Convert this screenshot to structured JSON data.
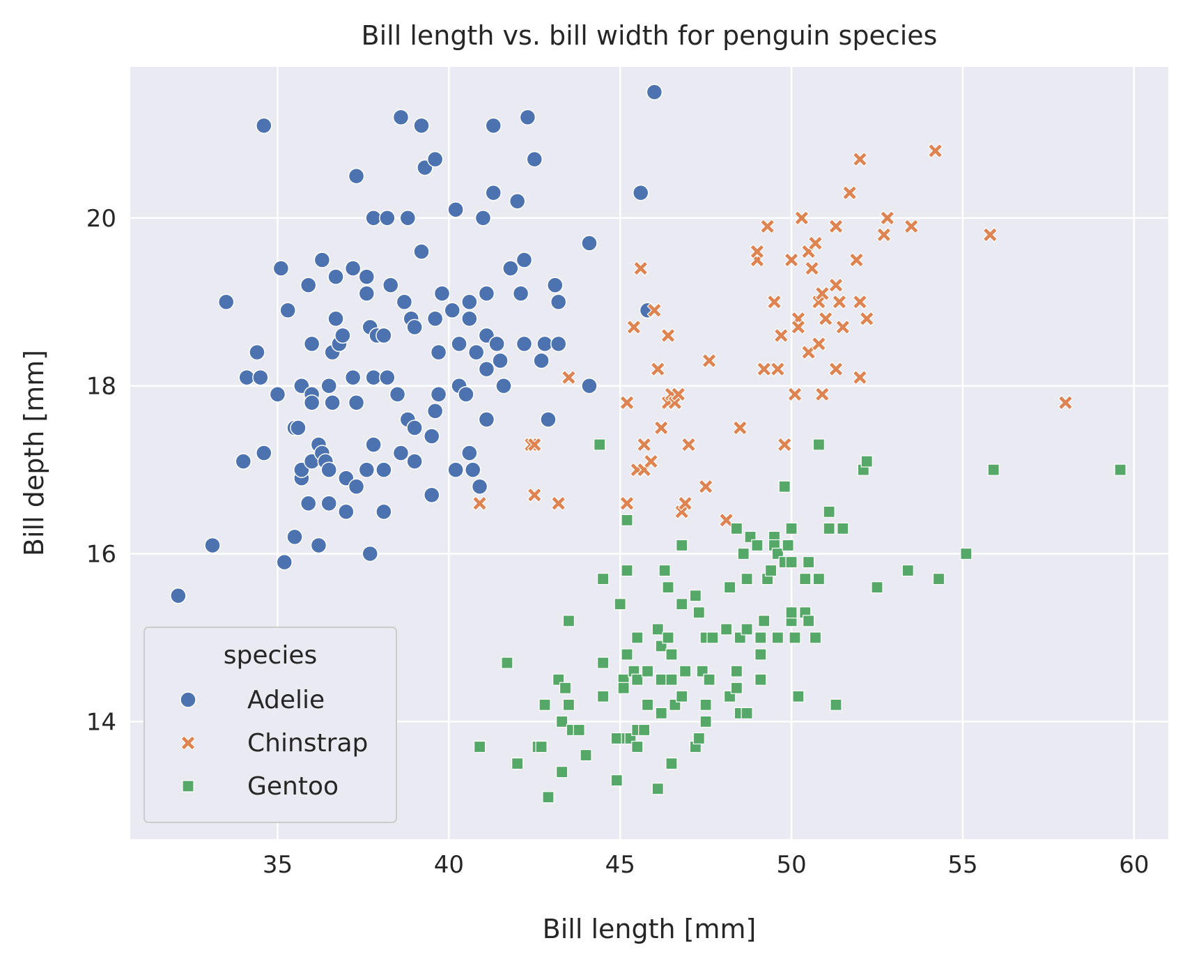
{
  "chart_data": {
    "type": "scatter",
    "title": "Bill length vs. bill width for penguin species",
    "xlabel": "Bill length [mm]",
    "ylabel": "Bill depth [mm]",
    "xlim": [
      30.7,
      61.0
    ],
    "ylim": [
      12.6,
      21.8
    ],
    "xticks": [
      35,
      40,
      45,
      50,
      55,
      60
    ],
    "yticks": [
      14,
      16,
      18,
      20
    ],
    "grid": true,
    "background": "#eaeaf2",
    "legend": {
      "title": "species",
      "placement": "lower-left"
    },
    "series": [
      {
        "name": "Adelie",
        "marker": "circle",
        "color": "#4c72b0",
        "points": [
          [
            32.1,
            15.5
          ],
          [
            33.1,
            16.1
          ],
          [
            33.5,
            19.0
          ],
          [
            34.0,
            17.1
          ],
          [
            34.1,
            18.1
          ],
          [
            34.4,
            18.4
          ],
          [
            34.5,
            18.1
          ],
          [
            34.6,
            21.1
          ],
          [
            34.6,
            17.2
          ],
          [
            35.0,
            17.9
          ],
          [
            35.1,
            19.4
          ],
          [
            35.2,
            15.9
          ],
          [
            35.3,
            18.9
          ],
          [
            35.5,
            16.2
          ],
          [
            35.5,
            17.5
          ],
          [
            35.6,
            17.5
          ],
          [
            35.7,
            16.9
          ],
          [
            35.7,
            17.0
          ],
          [
            35.7,
            18.0
          ],
          [
            35.9,
            19.2
          ],
          [
            35.9,
            16.6
          ],
          [
            36.0,
            17.9
          ],
          [
            36.0,
            18.5
          ],
          [
            36.0,
            17.8
          ],
          [
            36.0,
            17.1
          ],
          [
            36.2,
            16.1
          ],
          [
            36.2,
            17.3
          ],
          [
            36.3,
            19.5
          ],
          [
            36.3,
            17.2
          ],
          [
            36.4,
            17.1
          ],
          [
            36.5,
            18.0
          ],
          [
            36.5,
            16.6
          ],
          [
            36.5,
            17.0
          ],
          [
            36.6,
            17.8
          ],
          [
            36.6,
            18.4
          ],
          [
            36.7,
            18.8
          ],
          [
            36.7,
            19.3
          ],
          [
            36.8,
            18.5
          ],
          [
            36.9,
            18.6
          ],
          [
            37.0,
            16.9
          ],
          [
            37.0,
            16.5
          ],
          [
            37.2,
            18.1
          ],
          [
            37.2,
            19.4
          ],
          [
            37.3,
            20.5
          ],
          [
            37.3,
            17.8
          ],
          [
            37.3,
            16.8
          ],
          [
            37.6,
            19.1
          ],
          [
            37.6,
            17.0
          ],
          [
            37.6,
            19.3
          ],
          [
            37.7,
            16.0
          ],
          [
            37.7,
            18.7
          ],
          [
            37.8,
            20.0
          ],
          [
            37.8,
            18.1
          ],
          [
            37.8,
            17.3
          ],
          [
            37.9,
            18.6
          ],
          [
            38.1,
            17.0
          ],
          [
            38.1,
            18.6
          ],
          [
            38.1,
            16.5
          ],
          [
            38.2,
            20.0
          ],
          [
            38.2,
            18.1
          ],
          [
            38.3,
            19.2
          ],
          [
            38.5,
            17.9
          ],
          [
            38.6,
            21.2
          ],
          [
            38.6,
            17.2
          ],
          [
            38.7,
            19.0
          ],
          [
            38.8,
            17.6
          ],
          [
            38.8,
            20.0
          ],
          [
            38.9,
            18.8
          ],
          [
            39.0,
            17.5
          ],
          [
            39.0,
            18.7
          ],
          [
            39.0,
            17.1
          ],
          [
            39.2,
            19.6
          ],
          [
            39.2,
            21.1
          ],
          [
            39.3,
            20.6
          ],
          [
            39.5,
            17.4
          ],
          [
            39.5,
            16.7
          ],
          [
            39.6,
            17.7
          ],
          [
            39.6,
            20.7
          ],
          [
            39.6,
            18.8
          ],
          [
            39.7,
            18.4
          ],
          [
            39.7,
            17.9
          ],
          [
            39.8,
            19.1
          ],
          [
            40.1,
            18.9
          ],
          [
            40.2,
            17.0
          ],
          [
            40.2,
            20.1
          ],
          [
            40.3,
            18.5
          ],
          [
            40.3,
            18.0
          ],
          [
            40.5,
            17.9
          ],
          [
            40.6,
            17.2
          ],
          [
            40.6,
            18.8
          ],
          [
            40.6,
            19.0
          ],
          [
            40.7,
            17.0
          ],
          [
            40.8,
            18.4
          ],
          [
            40.9,
            16.8
          ],
          [
            41.0,
            20.0
          ],
          [
            41.1,
            18.2
          ],
          [
            41.1,
            19.1
          ],
          [
            41.1,
            17.6
          ],
          [
            41.1,
            18.6
          ],
          [
            41.3,
            21.1
          ],
          [
            41.3,
            20.3
          ],
          [
            41.4,
            18.5
          ],
          [
            41.5,
            18.3
          ],
          [
            41.6,
            18.0
          ],
          [
            41.8,
            19.4
          ],
          [
            42.0,
            20.2
          ],
          [
            42.1,
            19.1
          ],
          [
            42.2,
            18.5
          ],
          [
            42.2,
            19.5
          ],
          [
            42.3,
            21.2
          ],
          [
            42.5,
            20.7
          ],
          [
            42.7,
            18.3
          ],
          [
            42.8,
            18.5
          ],
          [
            42.9,
            17.6
          ],
          [
            43.1,
            19.2
          ],
          [
            43.2,
            19.0
          ],
          [
            43.2,
            18.5
          ],
          [
            44.1,
            19.7
          ],
          [
            44.1,
            18.0
          ],
          [
            45.6,
            20.3
          ],
          [
            45.8,
            18.9
          ],
          [
            46.0,
            21.5
          ]
        ]
      },
      {
        "name": "Chinstrap",
        "marker": "x",
        "color": "#dd8452",
        "points": [
          [
            40.9,
            16.6
          ],
          [
            42.4,
            17.3
          ],
          [
            42.5,
            16.7
          ],
          [
            42.5,
            17.3
          ],
          [
            43.2,
            16.6
          ],
          [
            43.5,
            18.1
          ],
          [
            45.2,
            17.8
          ],
          [
            45.2,
            16.6
          ],
          [
            45.4,
            18.7
          ],
          [
            45.5,
            17.0
          ],
          [
            45.6,
            19.4
          ],
          [
            45.7,
            17.3
          ],
          [
            45.7,
            17.0
          ],
          [
            45.9,
            17.1
          ],
          [
            46.0,
            18.9
          ],
          [
            46.1,
            18.2
          ],
          [
            46.2,
            17.5
          ],
          [
            46.4,
            17.8
          ],
          [
            46.4,
            18.6
          ],
          [
            46.5,
            17.9
          ],
          [
            46.6,
            17.8
          ],
          [
            46.7,
            17.9
          ],
          [
            46.8,
            16.5
          ],
          [
            46.9,
            16.6
          ],
          [
            47.0,
            17.3
          ],
          [
            47.5,
            16.8
          ],
          [
            47.6,
            18.3
          ],
          [
            48.1,
            16.4
          ],
          [
            48.5,
            17.5
          ],
          [
            49.0,
            19.5
          ],
          [
            49.0,
            19.6
          ],
          [
            49.2,
            18.2
          ],
          [
            49.3,
            19.9
          ],
          [
            49.5,
            19.0
          ],
          [
            49.6,
            18.2
          ],
          [
            49.7,
            18.6
          ],
          [
            49.8,
            17.3
          ],
          [
            50.0,
            19.5
          ],
          [
            50.1,
            17.9
          ],
          [
            50.2,
            18.8
          ],
          [
            50.2,
            18.7
          ],
          [
            50.3,
            20.0
          ],
          [
            50.5,
            19.6
          ],
          [
            50.5,
            18.4
          ],
          [
            50.6,
            19.4
          ],
          [
            50.7,
            19.7
          ],
          [
            50.8,
            18.5
          ],
          [
            50.8,
            19.0
          ],
          [
            50.9,
            19.1
          ],
          [
            50.9,
            17.9
          ],
          [
            51.0,
            18.8
          ],
          [
            51.3,
            19.9
          ],
          [
            51.3,
            18.2
          ],
          [
            51.3,
            19.2
          ],
          [
            51.4,
            19.0
          ],
          [
            51.5,
            18.7
          ],
          [
            51.7,
            20.3
          ],
          [
            51.9,
            19.5
          ],
          [
            52.0,
            18.1
          ],
          [
            52.0,
            19.0
          ],
          [
            52.0,
            20.7
          ],
          [
            52.2,
            18.8
          ],
          [
            52.7,
            19.8
          ],
          [
            52.8,
            20.0
          ],
          [
            53.5,
            19.9
          ],
          [
            54.2,
            20.8
          ],
          [
            55.8,
            19.8
          ],
          [
            58.0,
            17.8
          ]
        ]
      },
      {
        "name": "Gentoo",
        "marker": "square",
        "color": "#55a868",
        "points": [
          [
            40.9,
            13.7
          ],
          [
            41.7,
            14.7
          ],
          [
            42.0,
            13.5
          ],
          [
            42.6,
            13.7
          ],
          [
            42.7,
            13.7
          ],
          [
            42.8,
            14.2
          ],
          [
            42.9,
            13.1
          ],
          [
            43.2,
            14.5
          ],
          [
            43.3,
            14.0
          ],
          [
            43.3,
            13.4
          ],
          [
            43.4,
            14.4
          ],
          [
            43.5,
            15.2
          ],
          [
            43.5,
            14.2
          ],
          [
            43.6,
            13.9
          ],
          [
            43.8,
            13.9
          ],
          [
            44.0,
            13.6
          ],
          [
            44.4,
            17.3
          ],
          [
            44.5,
            15.7
          ],
          [
            44.5,
            14.7
          ],
          [
            44.5,
            14.3
          ],
          [
            44.9,
            13.8
          ],
          [
            44.9,
            13.3
          ],
          [
            45.0,
            15.4
          ],
          [
            45.1,
            14.5
          ],
          [
            45.1,
            14.4
          ],
          [
            45.2,
            16.4
          ],
          [
            45.2,
            15.8
          ],
          [
            45.2,
            14.8
          ],
          [
            45.2,
            13.8
          ],
          [
            45.3,
            13.8
          ],
          [
            45.4,
            14.6
          ],
          [
            45.5,
            13.9
          ],
          [
            45.5,
            13.7
          ],
          [
            45.5,
            15.0
          ],
          [
            45.5,
            14.5
          ],
          [
            45.7,
            13.9
          ],
          [
            45.8,
            14.6
          ],
          [
            45.8,
            14.2
          ],
          [
            46.1,
            15.1
          ],
          [
            46.1,
            13.2
          ],
          [
            46.2,
            14.5
          ],
          [
            46.2,
            14.9
          ],
          [
            46.2,
            14.1
          ],
          [
            46.3,
            15.8
          ],
          [
            46.4,
            15.0
          ],
          [
            46.4,
            15.6
          ],
          [
            46.5,
            14.5
          ],
          [
            46.5,
            14.8
          ],
          [
            46.5,
            13.5
          ],
          [
            46.6,
            14.2
          ],
          [
            46.8,
            15.4
          ],
          [
            46.8,
            14.3
          ],
          [
            46.8,
            16.1
          ],
          [
            46.9,
            14.6
          ],
          [
            47.2,
            15.5
          ],
          [
            47.2,
            13.7
          ],
          [
            47.3,
            15.3
          ],
          [
            47.3,
            13.8
          ],
          [
            47.4,
            14.6
          ],
          [
            47.5,
            14.2
          ],
          [
            47.5,
            14.0
          ],
          [
            47.5,
            15.0
          ],
          [
            47.6,
            14.5
          ],
          [
            47.7,
            15.0
          ],
          [
            48.1,
            15.1
          ],
          [
            48.2,
            14.3
          ],
          [
            48.2,
            15.6
          ],
          [
            48.4,
            14.6
          ],
          [
            48.4,
            16.3
          ],
          [
            48.4,
            14.4
          ],
          [
            48.5,
            14.1
          ],
          [
            48.5,
            15.0
          ],
          [
            48.6,
            16.0
          ],
          [
            48.7,
            15.1
          ],
          [
            48.7,
            14.1
          ],
          [
            48.7,
            15.7
          ],
          [
            48.8,
            16.2
          ],
          [
            49.0,
            16.1
          ],
          [
            49.1,
            14.8
          ],
          [
            49.1,
            14.5
          ],
          [
            49.1,
            15.0
          ],
          [
            49.2,
            15.2
          ],
          [
            49.3,
            15.7
          ],
          [
            49.4,
            15.8
          ],
          [
            49.5,
            16.2
          ],
          [
            49.5,
            16.1
          ],
          [
            49.6,
            16.0
          ],
          [
            49.6,
            15.0
          ],
          [
            49.8,
            15.9
          ],
          [
            49.8,
            16.8
          ],
          [
            49.9,
            16.1
          ],
          [
            50.0,
            16.3
          ],
          [
            50.0,
            15.2
          ],
          [
            50.0,
            15.3
          ],
          [
            50.0,
            15.9
          ],
          [
            50.1,
            15.0
          ],
          [
            50.2,
            14.3
          ],
          [
            50.4,
            15.3
          ],
          [
            50.4,
            15.7
          ],
          [
            50.5,
            15.2
          ],
          [
            50.5,
            15.9
          ],
          [
            50.7,
            15.0
          ],
          [
            50.8,
            15.7
          ],
          [
            50.8,
            17.3
          ],
          [
            51.1,
            16.5
          ],
          [
            51.1,
            16.3
          ],
          [
            51.3,
            14.2
          ],
          [
            51.5,
            16.3
          ],
          [
            52.1,
            17.0
          ],
          [
            52.2,
            17.1
          ],
          [
            52.5,
            15.6
          ],
          [
            53.4,
            15.8
          ],
          [
            54.3,
            15.7
          ],
          [
            55.1,
            16.0
          ],
          [
            55.9,
            17.0
          ],
          [
            59.6,
            17.0
          ]
        ]
      }
    ]
  }
}
